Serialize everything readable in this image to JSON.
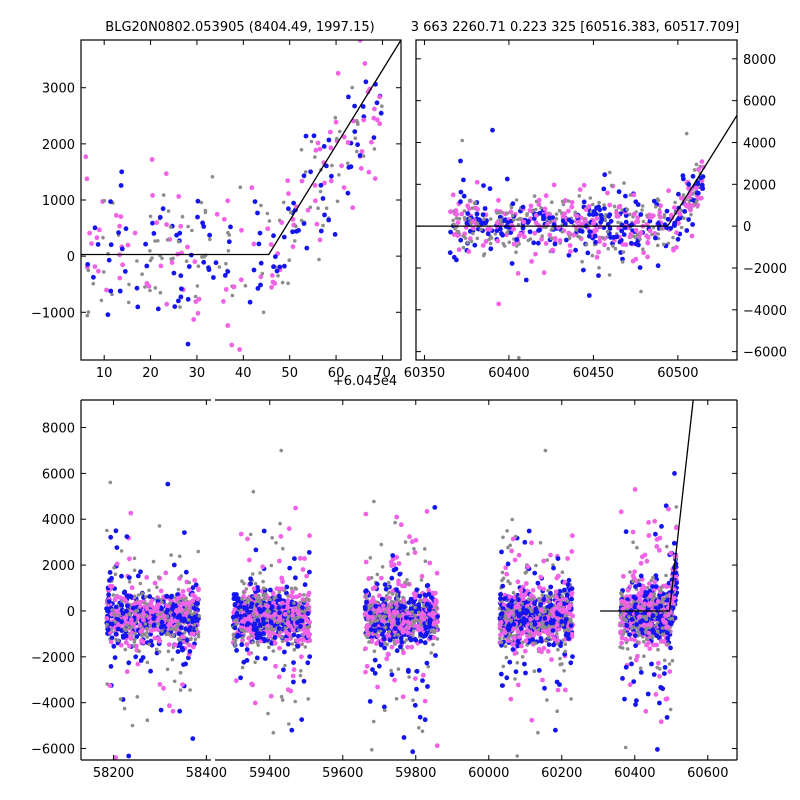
{
  "colors": {
    "series_a": "#f062e6",
    "series_b": "#1414f0",
    "series_c": "#8c8c8c",
    "model": "#000000"
  },
  "chart_data": [
    {
      "id": "top_left",
      "type": "scatter",
      "title": "BLG20N0802.053905 (8404.49, 1997.15)",
      "xlabel": "",
      "ylabel": "",
      "x_offset_label": "+6.045e4",
      "xlim": [
        5,
        74
      ],
      "ylim": [
        -1850,
        3850
      ],
      "xticks": [
        10,
        20,
        30,
        40,
        50,
        60,
        70
      ],
      "yticks": [
        -1000,
        0,
        1000,
        2000,
        3000
      ],
      "ytick_labels": [
        "−1000",
        "0",
        "1000",
        "2000",
        "3000"
      ],
      "grid": false,
      "model_line": [
        [
          5,
          30
        ],
        [
          45.5,
          30
        ],
        [
          74,
          3850
        ]
      ],
      "series_estimate": {
        "phase_1": {
          "x": [
            5,
            45
          ],
          "y_center": 0,
          "y_spread": 600
        },
        "phase_2": {
          "x": [
            45,
            70
          ],
          "y_trend": [
            0,
            2800
          ],
          "y_spread": 500
        }
      }
    },
    {
      "id": "top_right",
      "type": "scatter",
      "title": "3 663 2260.71 0.223 325 [60516.383, 60517.709]",
      "xlabel": "",
      "ylabel": "",
      "xlim": [
        60345,
        60535
      ],
      "ylim": [
        -6400,
        8900
      ],
      "xticks": [
        60350,
        60400,
        60450,
        60500
      ],
      "yticks": [
        -6000,
        -4000,
        -2000,
        0,
        2000,
        4000,
        6000,
        8000
      ],
      "ytick_labels": [
        "−6000",
        "−4000",
        "−2000",
        "0",
        "2000",
        "4000",
        "6000",
        "8000"
      ],
      "ytick_side": "right",
      "grid": false,
      "model_line": [
        [
          60345,
          0
        ],
        [
          60494,
          0
        ],
        [
          60535,
          5300
        ]
      ],
      "series_estimate": {
        "phase_1": {
          "x": [
            60365,
            60495
          ],
          "y_center": 0,
          "y_spread": 500
        },
        "phase_2": {
          "x": [
            60495,
            60515
          ],
          "y_trend": [
            0,
            2000
          ],
          "y_spread": 600
        }
      }
    },
    {
      "id": "bottom",
      "type": "scatter",
      "title": "",
      "xlabel": "",
      "ylabel": "",
      "broken_x_axis": true,
      "xlim_left": [
        58130,
        58410
      ],
      "xlim_right": [
        59250,
        60680
      ],
      "ylim": [
        -6500,
        9200
      ],
      "xticks_left": [
        58200,
        58400
      ],
      "xticks_right": [
        59400,
        59600,
        59800,
        60000,
        60200,
        60400,
        60600
      ],
      "yticks": [
        -6000,
        -4000,
        -2000,
        0,
        2000,
        4000,
        6000,
        8000
      ],
      "ytick_labels": [
        "−6000",
        "−4000",
        "−2000",
        "0",
        "2000",
        "4000",
        "6000",
        "8000"
      ],
      "grid": false,
      "model_line": [
        [
          60305,
          0
        ],
        [
          60495,
          0
        ],
        [
          60560,
          9200
        ]
      ],
      "seasons": [
        {
          "x": [
            58185,
            58385
          ],
          "y_center": -300
        },
        {
          "x": [
            59300,
            59510
          ],
          "y_center": -300
        },
        {
          "x": [
            59660,
            59860
          ],
          "y_center": -300
        },
        {
          "x": [
            60030,
            60230
          ],
          "y_center": -300
        },
        {
          "x": [
            60360,
            60515
          ],
          "y_center": -200
        }
      ]
    }
  ]
}
